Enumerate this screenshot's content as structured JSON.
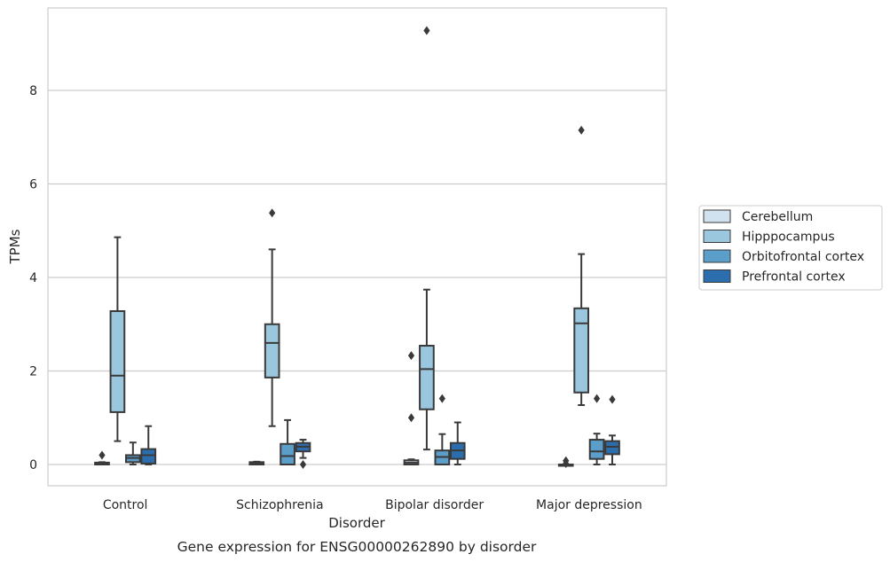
{
  "chart_data": {
    "type": "box",
    "xlabel": "Disorder",
    "ylabel": "TPMs",
    "caption": "Gene expression for ENSG00000262890 by disorder",
    "categories": [
      "Control",
      "Schizophrenia",
      "Bipolar disorder",
      "Major depression"
    ],
    "ylim": [
      -0.45,
      9.75
    ],
    "yticks": [
      0,
      2,
      4,
      6,
      8
    ],
    "grid": "horizontal",
    "legend_position": "right",
    "series": [
      {
        "name": "Cerebellum",
        "color": "#d0e2f0",
        "boxes": [
          {
            "whisker_low": 0.0,
            "q1": 0.0,
            "median": 0.01,
            "q3": 0.04,
            "whisker_high": 0.05,
            "outliers": [
              0.2
            ]
          },
          {
            "whisker_low": 0.0,
            "q1": 0.0,
            "median": 0.02,
            "q3": 0.05,
            "whisker_high": 0.06,
            "outliers": []
          },
          {
            "whisker_low": 0.0,
            "q1": 0.0,
            "median": 0.04,
            "q3": 0.09,
            "whisker_high": 0.11,
            "outliers": [
              1.0,
              2.33
            ]
          },
          {
            "whisker_low": 0.0,
            "q1": 0.0,
            "median": 0.0,
            "q3": 0.0,
            "whisker_high": 0.0,
            "outliers": [
              0.02,
              0.08
            ]
          }
        ]
      },
      {
        "name": "Hipppocampus",
        "color": "#9ac7de",
        "boxes": [
          {
            "whisker_low": 0.5,
            "q1": 1.12,
            "median": 1.9,
            "q3": 3.28,
            "whisker_high": 4.86,
            "outliers": []
          },
          {
            "whisker_low": 0.82,
            "q1": 1.86,
            "median": 2.6,
            "q3": 3.0,
            "whisker_high": 4.6,
            "outliers": [
              5.38
            ]
          },
          {
            "whisker_low": 0.32,
            "q1": 1.18,
            "median": 2.04,
            "q3": 2.54,
            "whisker_high": 3.74,
            "outliers": [
              9.28
            ]
          },
          {
            "whisker_low": 1.27,
            "q1": 1.54,
            "median": 3.02,
            "q3": 3.34,
            "whisker_high": 4.5,
            "outliers": [
              7.15
            ]
          }
        ]
      },
      {
        "name": "Orbitofrontal cortex",
        "color": "#5a9ec9",
        "boxes": [
          {
            "whisker_low": 0.0,
            "q1": 0.05,
            "median": 0.14,
            "q3": 0.2,
            "whisker_high": 0.47,
            "outliers": []
          },
          {
            "whisker_low": 0.0,
            "q1": 0.0,
            "median": 0.18,
            "q3": 0.44,
            "whisker_high": 0.95,
            "outliers": []
          },
          {
            "whisker_low": 0.0,
            "q1": 0.0,
            "median": 0.16,
            "q3": 0.3,
            "whisker_high": 0.65,
            "outliers": [
              1.41
            ]
          },
          {
            "whisker_low": 0.0,
            "q1": 0.12,
            "median": 0.28,
            "q3": 0.53,
            "whisker_high": 0.66,
            "outliers": [
              1.41
            ]
          }
        ]
      },
      {
        "name": "Prefrontal cortex",
        "color": "#2c6ead",
        "boxes": [
          {
            "whisker_low": 0.0,
            "q1": 0.02,
            "median": 0.2,
            "q3": 0.33,
            "whisker_high": 0.82,
            "outliers": []
          },
          {
            "whisker_low": 0.14,
            "q1": 0.28,
            "median": 0.38,
            "q3": 0.46,
            "whisker_high": 0.53,
            "outliers": [
              0.0
            ]
          },
          {
            "whisker_low": 0.0,
            "q1": 0.12,
            "median": 0.3,
            "q3": 0.46,
            "whisker_high": 0.9,
            "outliers": []
          },
          {
            "whisker_low": 0.0,
            "q1": 0.22,
            "median": 0.38,
            "q3": 0.5,
            "whisker_high": 0.62,
            "outliers": [
              1.39
            ]
          }
        ]
      }
    ]
  }
}
